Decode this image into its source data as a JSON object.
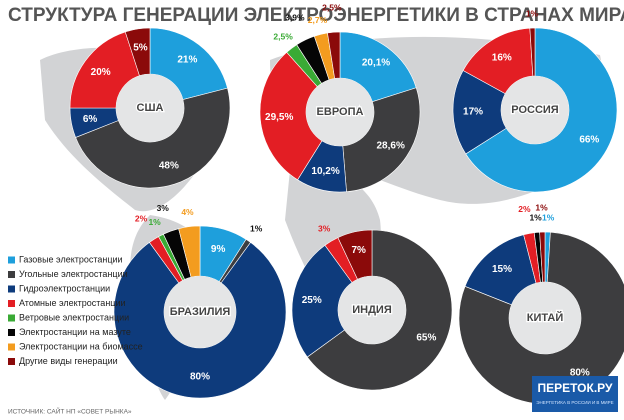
{
  "title": "СТРУКТУРА ГЕНЕРАЦИИ ЭЛЕКТРОЭНЕРГЕТИКИ В СТРАНАХ МИРА",
  "legend": {
    "categories": [
      "Газовые электростанции",
      "Угольные электростанции",
      "Гидроэлектростанции",
      "Атомные электростанции",
      "Ветровые электростанции",
      "Электростанции на мазуте",
      "Электростанции на биомассе",
      "Другие виды генерации"
    ],
    "colors": [
      "#1e9fdc",
      "#3d3d3f",
      "#0e3b7c",
      "#e31e24",
      "#3aaa35",
      "#050505",
      "#f39c1f",
      "#8b0a0a"
    ]
  },
  "source": "ИСТОЧНИК: САЙТ НП «СОВЕТ РЫНКА»",
  "logo": {
    "name": "ПЕРЕТОК.РУ",
    "tagline": "ЭНЕРГЕТИКА В РОССИИ И В МИРЕ"
  },
  "chart_data": [
    {
      "type": "pie",
      "label": "США",
      "values": [
        21,
        48,
        6,
        20,
        null,
        null,
        null,
        5
      ],
      "value_labels": [
        "21%",
        "48%",
        "6%",
        "20%",
        null,
        null,
        null,
        "5%"
      ]
    },
    {
      "type": "pie",
      "label": "ЕВРОПА",
      "values": [
        20.1,
        28.6,
        10.2,
        29.5,
        2.5,
        3.9,
        2.7,
        2.5
      ],
      "value_labels": [
        "20,1%",
        "28,6%",
        "10,2%",
        "29,5%",
        "2,5%",
        "3,9%",
        "2,7%",
        "2,5%"
      ]
    },
    {
      "type": "pie",
      "label": "РОССИЯ",
      "values": [
        66,
        null,
        17,
        16,
        null,
        null,
        null,
        1
      ],
      "value_labels": [
        "66%",
        null,
        "17%",
        "16%",
        null,
        null,
        null,
        "1%"
      ]
    },
    {
      "type": "pie",
      "label": "БРАЗИЛИЯ",
      "values": [
        9,
        1,
        80,
        2,
        1,
        3,
        4,
        null
      ],
      "value_labels": [
        "9%",
        "1%",
        "80%",
        "2%",
        "1%",
        "3%",
        "4%",
        null
      ]
    },
    {
      "type": "pie",
      "label": "ИНДИЯ",
      "values": [
        null,
        65,
        25,
        3,
        null,
        null,
        null,
        7
      ],
      "value_labels": [
        null,
        "65%",
        "25%",
        "3%",
        null,
        null,
        null,
        "7%"
      ]
    },
    {
      "type": "pie",
      "label": "КИТАЙ",
      "values": [
        1,
        80,
        15,
        2,
        null,
        1,
        null,
        1
      ],
      "value_labels": [
        "1%",
        "80%",
        "15%",
        "2%",
        null,
        "1%",
        null,
        "1%"
      ]
    }
  ]
}
